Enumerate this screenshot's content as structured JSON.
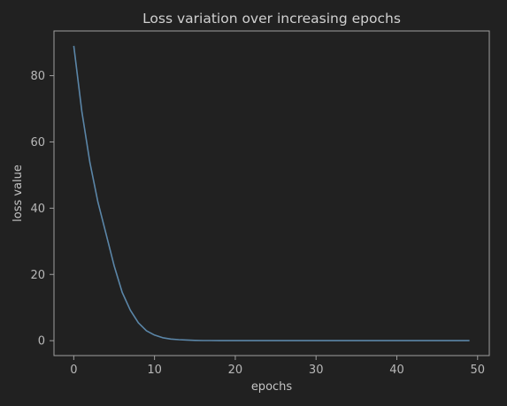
{
  "chart_data": {
    "type": "line",
    "title": "Loss variation over increasing epochs",
    "xlabel": "epochs",
    "ylabel": "loss value",
    "xlim": [
      -2.45,
      51.45
    ],
    "ylim": [
      -4.5,
      93.5
    ],
    "xticks": [
      0,
      10,
      20,
      30,
      40,
      50
    ],
    "yticks": [
      0,
      20,
      40,
      60,
      80
    ],
    "grid": false,
    "colors": {
      "background": "#212121",
      "frame": "#9e9e9e",
      "line": "#5b86a8"
    },
    "series": [
      {
        "x": [
          0,
          1,
          2,
          3,
          4,
          5,
          6,
          7,
          8,
          9,
          10,
          11,
          12,
          13,
          14,
          15,
          16,
          17,
          18,
          19,
          20,
          21,
          22,
          23,
          24,
          25,
          26,
          27,
          28,
          29,
          30,
          31,
          32,
          33,
          34,
          35,
          36,
          37,
          38,
          39,
          40,
          41,
          42,
          43,
          44,
          45,
          46,
          47,
          48,
          49
        ],
        "values": [
          89.0,
          69.2,
          53.8,
          41.8,
          32.2,
          22.6,
          14.6,
          9.2,
          5.4,
          3.0,
          1.7,
          0.9,
          0.5,
          0.3,
          0.2,
          0.1,
          0.05,
          0.03,
          0.02,
          0.01,
          0,
          0,
          0,
          0,
          0,
          0,
          0,
          0,
          0,
          0,
          0,
          0,
          0,
          0,
          0,
          0,
          0,
          0,
          0,
          0,
          0,
          0,
          0,
          0,
          0,
          0,
          0,
          0,
          0,
          0
        ]
      }
    ]
  }
}
